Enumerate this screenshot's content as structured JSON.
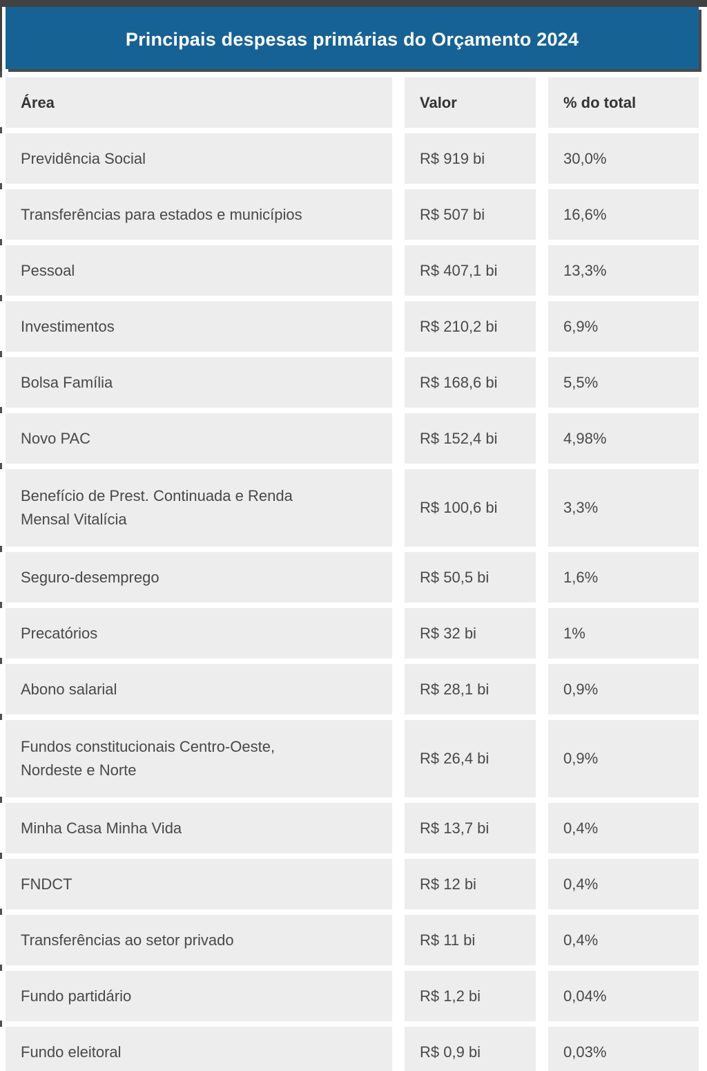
{
  "chart_data": {
    "type": "table",
    "title": "Principais despesas primárias do Orçamento 2024",
    "columns": [
      "Área",
      "Valor",
      "% do total"
    ],
    "rows": [
      {
        "area": "Previdência Social",
        "valor": "R$ 919 bi",
        "pct": "30,0%"
      },
      {
        "area": "Transferências para estados e municípios",
        "valor": "R$ 507 bi",
        "pct": "16,6%"
      },
      {
        "area": "Pessoal",
        "valor": "R$ 407,1 bi",
        "pct": "13,3%"
      },
      {
        "area": "Investimentos",
        "valor": "R$ 210,2 bi",
        "pct": "6,9%"
      },
      {
        "area": "Bolsa Família",
        "valor": "R$ 168,6 bi",
        "pct": "5,5%"
      },
      {
        "area": "Novo PAC",
        "valor": "R$ 152,4 bi",
        "pct": "4,98%"
      },
      {
        "area": "Benefício de Prest. Continuada e Renda\nMensal Vitalícia",
        "valor": "R$ 100,6 bi",
        "pct": "3,3%"
      },
      {
        "area": "Seguro-desemprego",
        "valor": "R$ 50,5 bi",
        "pct": "1,6%"
      },
      {
        "area": "Precatórios",
        "valor": "R$ 32 bi",
        "pct": "1%"
      },
      {
        "area": "Abono salarial",
        "valor": "R$ 28,1 bi",
        "pct": "0,9%"
      },
      {
        "area": "Fundos constitucionais Centro-Oeste,\nNordeste e Norte",
        "valor": "R$ 26,4 bi",
        "pct": "0,9%"
      },
      {
        "area": "Minha Casa Minha Vida",
        "valor": "R$ 13,7 bi",
        "pct": "0,4%"
      },
      {
        "area": "FNDCT",
        "valor": "R$ 12 bi",
        "pct": "0,4%"
      },
      {
        "area": "Transferências ao setor privado",
        "valor": "R$ 11 bi",
        "pct": "0,4%"
      },
      {
        "area": "Fundo partidário",
        "valor": "R$ 1,2 bi",
        "pct": "0,04%"
      },
      {
        "area": "Fundo eleitoral",
        "valor": "R$ 0,9 bi",
        "pct": "0,03%"
      }
    ],
    "values_numeric_bi": [
      919,
      507,
      407.1,
      210.2,
      168.6,
      152.4,
      100.6,
      50.5,
      32,
      28.1,
      26.4,
      13.7,
      12,
      11,
      1.2,
      0.9
    ],
    "pct_numeric": [
      30.0,
      16.6,
      13.3,
      6.9,
      5.5,
      4.98,
      3.3,
      1.6,
      1,
      0.9,
      0.9,
      0.4,
      0.4,
      0.4,
      0.04,
      0.03
    ]
  },
  "colors": {
    "banner_blue": "#176295",
    "frame_dark": "#414141",
    "shadow_dark": "#4a4a4a",
    "cell_gray": "#ededed",
    "body_text": "#484848",
    "header_text": "#333333",
    "title_text": "#ffffff"
  }
}
